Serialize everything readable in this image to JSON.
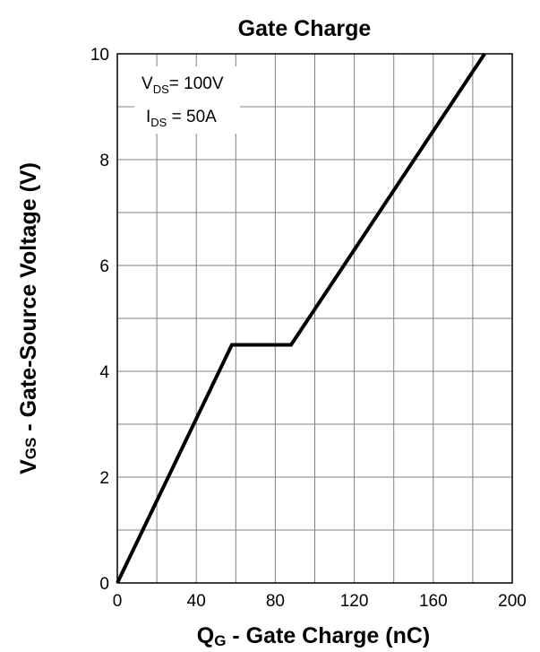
{
  "chart_data": {
    "type": "line",
    "title": "Gate Charge",
    "xlabel": {
      "main": "Q",
      "sub": "G",
      "rest": " - Gate Charge (nC)"
    },
    "ylabel": {
      "main": "V",
      "sub": "GS",
      "rest": " - Gate-Source Voltage (V)"
    },
    "xlim": [
      0,
      200
    ],
    "ylim": [
      0,
      10
    ],
    "xticks": [
      0,
      40,
      80,
      120,
      160,
      200
    ],
    "yticks": [
      0,
      2,
      4,
      6,
      8,
      10
    ],
    "x_minor_step": 20,
    "y_minor_step": 1,
    "grid": true,
    "annotation": {
      "line1": {
        "main": "V",
        "sub": "DS",
        "rest": "= 100V"
      },
      "line2": {
        "main": "I",
        "sub": "DS",
        "rest": " = 50A"
      }
    },
    "series": [
      {
        "x": [
          0,
          58,
          88,
          186
        ],
        "y": [
          0,
          4.5,
          4.5,
          10
        ]
      }
    ]
  }
}
